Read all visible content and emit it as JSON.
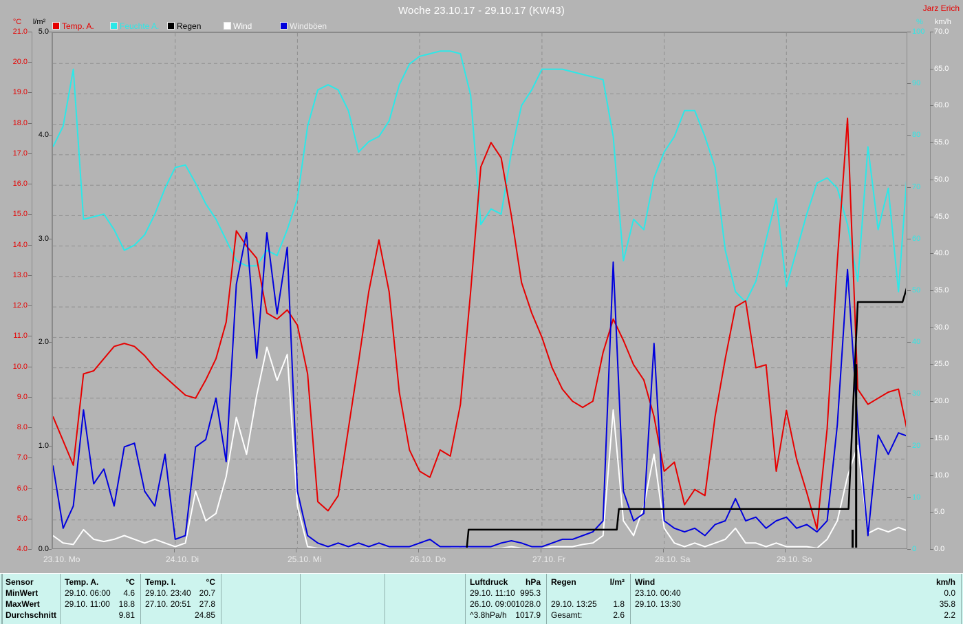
{
  "header": {
    "title": "Woche 23.10.17 - 29.10.17 (KW43)",
    "author": "Jarz Erich"
  },
  "legend": [
    {
      "label": "Temp. A.",
      "color": "#e60000",
      "text_color": "#e60000"
    },
    {
      "label": "Feuchte A.",
      "color": "#2ce8e8",
      "text_color": "#2ce8e8"
    },
    {
      "label": "Regen",
      "color": "#000000",
      "text_color": "#000000"
    },
    {
      "label": "Wind",
      "color": "#ffffff",
      "text_color": "#ffffff"
    },
    {
      "label": "Windböen",
      "color": "#0000dd",
      "text_color": "#f2f2f2"
    }
  ],
  "axes": {
    "temp": {
      "unit": "°C",
      "color": "#e60000",
      "ticks": [
        "21.0",
        "20.0",
        "19.0",
        "18.0",
        "17.0",
        "16.0",
        "15.0",
        "14.0",
        "13.0",
        "12.0",
        "11.0",
        "10.0",
        "9.0",
        "8.0",
        "7.0",
        "6.0",
        "5.0",
        "4.0"
      ]
    },
    "rain": {
      "unit": "l/m²",
      "color": "#000000",
      "ticks": [
        "5.0",
        "4.0",
        "3.0",
        "2.0",
        "1.0",
        "0.0"
      ]
    },
    "humidity": {
      "unit": "%",
      "color": "#2ce8e8",
      "ticks": [
        "100",
        "90",
        "80",
        "70",
        "60",
        "50",
        "40",
        "30",
        "20",
        "10",
        "0"
      ]
    },
    "wind": {
      "unit": "km/h",
      "color": "#ffffff",
      "ticks": [
        "70.0",
        "65.0",
        "60.0",
        "55.0",
        "50.0",
        "45.0",
        "40.0",
        "35.0",
        "30.0",
        "25.0",
        "20.0",
        "15.0",
        "10.0",
        "5.0",
        "0.0"
      ]
    }
  },
  "x_axis": {
    "labels": [
      "23.10.  Mo",
      "24.10.  Di",
      "25.10.  Mi",
      "26.10.  Do",
      "27.10.  Fr",
      "28.10.  Sa",
      "29.10.  So"
    ],
    "day_width_hours": 24
  },
  "chart_data": {
    "type": "line",
    "title": "Woche 23.10.17 - 29.10.17 (KW43)",
    "x_total_hours": 168,
    "x_start_hours": 0,
    "x_step_hours": 2,
    "axis_ranges": {
      "temp": {
        "min": 4,
        "max": 21
      },
      "humidity": {
        "min": 0,
        "max": 100
      },
      "wind": {
        "min": 0,
        "max": 70
      },
      "rain": {
        "min": 0,
        "max": 5
      }
    },
    "grid": {
      "h_lines_temp_step": 1,
      "v_lines_every_hours": 24,
      "color": "#8e8e8e"
    },
    "series": [
      {
        "name": "Feuchte A.",
        "axis": "humidity",
        "color": "#2ce8e8",
        "values": [
          78,
          82,
          93,
          64,
          64.5,
          65,
          62,
          58,
          59,
          61,
          65,
          70,
          74,
          74.5,
          71,
          67,
          64,
          60,
          56,
          55,
          55,
          58,
          57,
          62,
          68,
          82,
          89,
          90,
          89,
          85,
          77,
          79,
          80,
          83,
          90,
          94,
          95.5,
          96,
          96.5,
          96.5,
          96,
          88,
          63,
          66,
          65,
          77,
          86,
          89,
          93,
          93,
          93,
          92.5,
          92,
          91.5,
          91,
          80,
          56,
          64,
          62,
          72,
          77,
          80,
          85,
          85,
          80,
          74,
          58,
          50,
          48,
          52,
          60,
          68,
          51,
          58,
          65,
          71,
          72,
          70,
          63,
          52,
          78,
          62,
          70,
          50,
          77
        ]
      },
      {
        "name": "Temp. A.",
        "axis": "temp",
        "color": "#e60000",
        "values": [
          8.4,
          7.6,
          6.8,
          9.8,
          9.9,
          10.3,
          10.7,
          10.8,
          10.7,
          10.4,
          10.0,
          9.7,
          9.4,
          9.1,
          9.0,
          9.6,
          10.3,
          11.5,
          14.5,
          14.0,
          13.6,
          11.8,
          11.6,
          11.9,
          11.4,
          9.8,
          5.6,
          5.3,
          5.8,
          8.0,
          10.2,
          12.5,
          14.2,
          12.5,
          9.2,
          7.3,
          6.6,
          6.4,
          7.3,
          7.1,
          8.8,
          12.5,
          16.6,
          17.4,
          16.9,
          15.0,
          12.8,
          11.8,
          11.0,
          10.0,
          9.3,
          8.9,
          8.7,
          8.9,
          10.5,
          11.6,
          10.9,
          10.1,
          9.6,
          8.4,
          6.6,
          6.9,
          5.5,
          6.0,
          5.8,
          8.4,
          10.3,
          12.0,
          12.2,
          10.0,
          10.1,
          6.6,
          8.6,
          7.0,
          5.9,
          4.7,
          8.0,
          13.5,
          18.2,
          9.3,
          8.8,
          9.0,
          9.2,
          9.3,
          7.7
        ]
      },
      {
        "name": "Wind",
        "axis": "wind",
        "color": "#ffffff",
        "values": [
          2,
          1,
          0.8,
          2.8,
          1.5,
          1.2,
          1.5,
          2,
          1.5,
          1,
          1.5,
          1,
          0.5,
          1,
          8,
          4,
          5,
          10,
          18,
          13,
          21,
          27.5,
          23,
          26.5,
          6,
          0.5,
          0.3,
          0.3,
          0.3,
          0.3,
          0.3,
          0.3,
          0.3,
          0.3,
          0.3,
          0.3,
          0.3,
          0.3,
          0.3,
          0.3,
          0.5,
          0.3,
          0.3,
          0.3,
          0.3,
          0.5,
          0.3,
          0.3,
          0.3,
          0.5,
          0.5,
          0.5,
          0.8,
          1,
          2,
          19,
          4,
          2,
          6,
          13,
          3,
          1,
          0.5,
          1,
          0.5,
          1,
          1.5,
          3,
          1,
          1,
          0.5,
          1,
          0.5,
          0.5,
          0.5,
          0.3,
          1.5,
          4,
          10,
          14.2,
          2.3,
          3,
          2.5,
          3.1,
          2.6
        ]
      },
      {
        "name": "Windböen",
        "axis": "wind",
        "color": "#0000dd",
        "values": [
          11.5,
          3,
          6,
          19,
          9,
          11,
          6,
          14,
          14.5,
          8,
          6,
          13,
          1.5,
          2,
          14,
          15,
          20.6,
          12,
          36,
          43,
          26,
          43,
          32,
          41,
          8,
          2,
          1,
          0.5,
          1,
          0.5,
          1,
          0.5,
          1,
          0.5,
          0.5,
          0.5,
          1,
          1.5,
          0.5,
          0.5,
          0.5,
          0.5,
          0.5,
          0.5,
          1,
          1.3,
          1,
          0.5,
          0.5,
          1,
          1.5,
          1.5,
          2,
          2.5,
          4,
          39,
          8,
          4,
          5,
          28,
          4,
          3,
          2.5,
          3,
          2,
          3.5,
          4,
          7,
          4,
          4.5,
          3,
          4,
          4.5,
          3,
          3.5,
          2.5,
          4,
          17,
          38,
          17,
          2,
          15.6,
          13,
          15.9,
          15.4
        ]
      }
    ],
    "rain": {
      "name": "Regen",
      "axis": "rain",
      "color": "#000000",
      "cumulative_points": [
        [
          0,
          0
        ],
        [
          81.2,
          0
        ],
        [
          81.6,
          0.2
        ],
        [
          110.7,
          0.2
        ],
        [
          111.1,
          0.4
        ],
        [
          156.2,
          0.4
        ],
        [
          158.0,
          2.4
        ],
        [
          166.8,
          2.4
        ],
        [
          168,
          2.6
        ]
      ],
      "rate_bars": [
        [
          157.0,
          0.2
        ],
        [
          157.7,
          1.8
        ]
      ]
    }
  },
  "table": {
    "row_labels": [
      "Sensor",
      "MinWert",
      "MaxWert",
      "Durchschnitt"
    ],
    "columns": [
      {
        "name": "Temp. A.",
        "unit": "°C",
        "min_date": "29.10.  06:00",
        "min_value": "4.6",
        "max_date": "29.10.  11:00",
        "max_value": "18.8",
        "avg_label": "",
        "avg_value": "9.81"
      },
      {
        "name": "Temp. I.",
        "unit": "°C",
        "min_date": "29.10.  23:40",
        "min_value": "20.7",
        "max_date": "27.10.  20:51",
        "max_value": "27.8",
        "avg_label": "",
        "avg_value": "24.85"
      },
      {
        "name": "",
        "unit": "",
        "min_date": "",
        "min_value": "",
        "max_date": "",
        "max_value": "",
        "avg_label": "",
        "avg_value": ""
      },
      {
        "name": "",
        "unit": "",
        "min_date": "",
        "min_value": "",
        "max_date": "",
        "max_value": "",
        "avg_label": "",
        "avg_value": ""
      },
      {
        "name": "",
        "unit": "",
        "min_date": "",
        "min_value": "",
        "max_date": "",
        "max_value": "",
        "avg_label": "",
        "avg_value": ""
      },
      {
        "name": "Luftdruck",
        "unit": "hPa",
        "min_date": "29.10.  11:10",
        "min_value": "995.3",
        "max_date": "26.10.  09:00",
        "max_value": "1028.0",
        "avg_label": "^3.8hPa/h",
        "avg_value": "1017.9"
      },
      {
        "name": "Regen",
        "unit": "l/m²",
        "min_date": "",
        "min_value": "",
        "max_date": "29.10.  13:25",
        "max_value": "1.8",
        "avg_label": "Gesamt:",
        "avg_value": "2.6"
      },
      {
        "name": "Wind",
        "unit": "km/h",
        "min_date": "23.10.  00:40",
        "min_value": "0.0",
        "max_date": "29.10.  13:30",
        "max_value": "35.8",
        "avg_label": "",
        "avg_value": "2.2"
      }
    ]
  }
}
